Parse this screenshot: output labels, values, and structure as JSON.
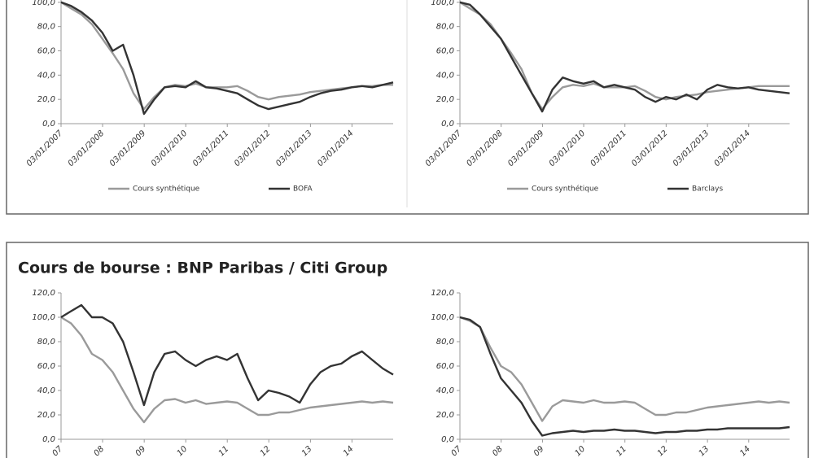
{
  "section_title": "Cours de bourse : BNP Paribas / Citi Group",
  "chart_data": [
    {
      "type": "line",
      "x": [
        "2007-01-03",
        "2007-04-01",
        "2007-07-01",
        "2007-10-01",
        "2008-01-01",
        "2008-04-01",
        "2008-07-01",
        "2008-10-01",
        "2009-01-01",
        "2009-04-01",
        "2009-07-01",
        "2009-10-01",
        "2010-01-01",
        "2010-04-01",
        "2010-07-01",
        "2010-10-01",
        "2011-01-01",
        "2011-04-01",
        "2011-07-01",
        "2011-10-01",
        "2012-01-01",
        "2012-04-01",
        "2012-07-01",
        "2012-10-01",
        "2013-01-01",
        "2013-04-01",
        "2013-07-01",
        "2013-10-01",
        "2014-01-01",
        "2014-04-01",
        "2014-07-01",
        "2014-10-01",
        "2014-12-31"
      ],
      "xlim": [
        "2007-01-03",
        "2014-12-31"
      ],
      "xticks": [
        {
          "value": "2007-01-03",
          "label": "03/01/2007"
        },
        {
          "value": "2008-01-03",
          "label": "03/01/2008"
        },
        {
          "value": "2009-01-03",
          "label": "03/01/2009"
        },
        {
          "value": "2010-01-03",
          "label": "03/01/2010"
        },
        {
          "value": "2011-01-03",
          "label": "03/01/2011"
        },
        {
          "value": "2012-01-03",
          "label": "03/01/2012"
        },
        {
          "value": "2013-01-03",
          "label": "03/01/2013"
        },
        {
          "value": "2014-01-03",
          "label": "03/01/2014"
        }
      ],
      "ylim": [
        0,
        120
      ],
      "yticks": [
        {
          "value": 0,
          "label": "0,0"
        },
        {
          "value": 20,
          "label": "20,0"
        },
        {
          "value": 40,
          "label": "40,0"
        },
        {
          "value": 60,
          "label": "60,0"
        },
        {
          "value": 80,
          "label": "80,0"
        },
        {
          "value": 100,
          "label": "100,0"
        }
      ],
      "series": [
        {
          "name": "Cours synthétique",
          "color": "#9a9a9a",
          "values": [
            100,
            95,
            90,
            82,
            70,
            58,
            45,
            25,
            12,
            22,
            30,
            32,
            31,
            33,
            30,
            30,
            30,
            31,
            27,
            22,
            20,
            22,
            23,
            24,
            26,
            27,
            28,
            29,
            30,
            31,
            31,
            32,
            32
          ]
        },
        {
          "name": "BOFA",
          "color": "#333333",
          "values": [
            100,
            97,
            92,
            85,
            75,
            60,
            65,
            40,
            8,
            20,
            30,
            31,
            30,
            35,
            30,
            29,
            27,
            25,
            20,
            15,
            12,
            14,
            16,
            18,
            22,
            25,
            27,
            28,
            30,
            31,
            30,
            32,
            34
          ]
        }
      ]
    },
    {
      "type": "line",
      "x": [
        "2007-01-03",
        "2007-04-01",
        "2007-07-01",
        "2007-10-01",
        "2008-01-01",
        "2008-04-01",
        "2008-07-01",
        "2008-10-01",
        "2009-01-01",
        "2009-04-01",
        "2009-07-01",
        "2009-10-01",
        "2010-01-01",
        "2010-04-01",
        "2010-07-01",
        "2010-10-01",
        "2011-01-01",
        "2011-04-01",
        "2011-07-01",
        "2011-10-01",
        "2012-01-01",
        "2012-04-01",
        "2012-07-01",
        "2012-10-01",
        "2013-01-01",
        "2013-04-01",
        "2013-07-01",
        "2013-10-01",
        "2014-01-01",
        "2014-04-01",
        "2014-07-01",
        "2014-10-01",
        "2014-12-31"
      ],
      "xlim": [
        "2007-01-03",
        "2014-12-31"
      ],
      "xticks": [
        {
          "value": "2007-01-03",
          "label": "03/01/2007"
        },
        {
          "value": "2008-01-03",
          "label": "03/01/2008"
        },
        {
          "value": "2009-01-03",
          "label": "03/01/2009"
        },
        {
          "value": "2010-01-03",
          "label": "03/01/2010"
        },
        {
          "value": "2011-01-03",
          "label": "03/01/2011"
        },
        {
          "value": "2012-01-03",
          "label": "03/01/2012"
        },
        {
          "value": "2013-01-03",
          "label": "03/01/2013"
        },
        {
          "value": "2014-01-03",
          "label": "03/01/2014"
        }
      ],
      "ylim": [
        0,
        120
      ],
      "yticks": [
        {
          "value": 0,
          "label": "0,0"
        },
        {
          "value": 20,
          "label": "20,0"
        },
        {
          "value": 40,
          "label": "40,0"
        },
        {
          "value": 60,
          "label": "60,0"
        },
        {
          "value": 80,
          "label": "80,0"
        },
        {
          "value": 100,
          "label": "100,0"
        }
      ],
      "series": [
        {
          "name": "Cours synthétique",
          "color": "#9a9a9a",
          "values": [
            100,
            95,
            90,
            82,
            70,
            58,
            45,
            25,
            12,
            22,
            30,
            32,
            31,
            33,
            30,
            30,
            30,
            31,
            27,
            22,
            20,
            22,
            23,
            24,
            26,
            27,
            28,
            29,
            30,
            31,
            31,
            31,
            31
          ]
        },
        {
          "name": "Barclays",
          "color": "#333333",
          "values": [
            100,
            98,
            90,
            80,
            70,
            55,
            40,
            25,
            10,
            28,
            38,
            35,
            33,
            35,
            30,
            32,
            30,
            28,
            22,
            18,
            22,
            20,
            24,
            20,
            28,
            32,
            30,
            29,
            30,
            28,
            27,
            26,
            25
          ]
        }
      ]
    },
    {
      "type": "line",
      "x": [
        "2007-01-03",
        "2007-04-01",
        "2007-07-01",
        "2007-10-01",
        "2008-01-01",
        "2008-04-01",
        "2008-07-01",
        "2008-10-01",
        "2009-01-01",
        "2009-04-01",
        "2009-07-01",
        "2009-10-01",
        "2010-01-01",
        "2010-04-01",
        "2010-07-01",
        "2010-10-01",
        "2011-01-01",
        "2011-04-01",
        "2011-07-01",
        "2011-10-01",
        "2012-01-01",
        "2012-04-01",
        "2012-07-01",
        "2012-10-01",
        "2013-01-01",
        "2013-04-01",
        "2013-07-01",
        "2013-10-01",
        "2014-01-01",
        "2014-04-01",
        "2014-07-01",
        "2014-10-01",
        "2014-12-31"
      ],
      "xlim": [
        "2007-01-03",
        "2014-12-31"
      ],
      "xticks": [
        {
          "value": "2007-01-03",
          "label": "07"
        },
        {
          "value": "2008-01-03",
          "label": "08"
        },
        {
          "value": "2009-01-03",
          "label": "09"
        },
        {
          "value": "2010-01-03",
          "label": "10"
        },
        {
          "value": "2011-01-03",
          "label": "11"
        },
        {
          "value": "2012-01-03",
          "label": "12"
        },
        {
          "value": "2013-01-03",
          "label": "13"
        },
        {
          "value": "2014-01-03",
          "label": "14"
        }
      ],
      "ylim": [
        0,
        120
      ],
      "yticks": [
        {
          "value": 0,
          "label": "0,0"
        },
        {
          "value": 20,
          "label": "20,0"
        },
        {
          "value": 40,
          "label": "40,0"
        },
        {
          "value": 60,
          "label": "60,0"
        },
        {
          "value": 80,
          "label": "80,0"
        },
        {
          "value": 100,
          "label": "100,0"
        },
        {
          "value": 120,
          "label": "120,0"
        }
      ],
      "series": [
        {
          "color": "#9a9a9a",
          "values": [
            100,
            95,
            85,
            70,
            65,
            55,
            40,
            25,
            14,
            25,
            32,
            33,
            30,
            32,
            29,
            30,
            31,
            30,
            25,
            20,
            20,
            22,
            22,
            24,
            26,
            27,
            28,
            29,
            30,
            31,
            30,
            31,
            30
          ]
        },
        {
          "color": "#333333",
          "values": [
            100,
            105,
            110,
            100,
            100,
            95,
            80,
            55,
            28,
            55,
            70,
            72,
            65,
            60,
            65,
            68,
            65,
            70,
            50,
            32,
            40,
            38,
            35,
            30,
            45,
            55,
            60,
            62,
            68,
            72,
            65,
            58,
            53
          ]
        }
      ]
    },
    {
      "type": "line",
      "x": [
        "2007-01-03",
        "2007-04-01",
        "2007-07-01",
        "2007-10-01",
        "2008-01-01",
        "2008-04-01",
        "2008-07-01",
        "2008-10-01",
        "2009-01-01",
        "2009-04-01",
        "2009-07-01",
        "2009-10-01",
        "2010-01-01",
        "2010-04-01",
        "2010-07-01",
        "2010-10-01",
        "2011-01-01",
        "2011-04-01",
        "2011-07-01",
        "2011-10-01",
        "2012-01-01",
        "2012-04-01",
        "2012-07-01",
        "2012-10-01",
        "2013-01-01",
        "2013-04-01",
        "2013-07-01",
        "2013-10-01",
        "2014-01-01",
        "2014-04-01",
        "2014-07-01",
        "2014-10-01",
        "2014-12-31"
      ],
      "xlim": [
        "2007-01-03",
        "2014-12-31"
      ],
      "xticks": [
        {
          "value": "2007-01-03",
          "label": "07"
        },
        {
          "value": "2008-01-03",
          "label": "08"
        },
        {
          "value": "2009-01-03",
          "label": "09"
        },
        {
          "value": "2010-01-03",
          "label": "10"
        },
        {
          "value": "2011-01-03",
          "label": "11"
        },
        {
          "value": "2012-01-03",
          "label": "12"
        },
        {
          "value": "2013-01-03",
          "label": "13"
        },
        {
          "value": "2014-01-03",
          "label": "14"
        }
      ],
      "ylim": [
        0,
        120
      ],
      "yticks": [
        {
          "value": 0,
          "label": "0,0"
        },
        {
          "value": 20,
          "label": "20,0"
        },
        {
          "value": 40,
          "label": "40,0"
        },
        {
          "value": 60,
          "label": "60,0"
        },
        {
          "value": 80,
          "label": "80,0"
        },
        {
          "value": 100,
          "label": "100,0"
        },
        {
          "value": 120,
          "label": "120,0"
        }
      ],
      "series": [
        {
          "color": "#9a9a9a",
          "values": [
            100,
            97,
            92,
            75,
            60,
            55,
            45,
            30,
            15,
            27,
            32,
            31,
            30,
            32,
            30,
            30,
            31,
            30,
            25,
            20,
            20,
            22,
            22,
            24,
            26,
            27,
            28,
            29,
            30,
            31,
            30,
            31,
            30
          ]
        },
        {
          "color": "#333333",
          "values": [
            100,
            98,
            92,
            70,
            50,
            40,
            30,
            15,
            3,
            5,
            6,
            7,
            6,
            7,
            7,
            8,
            7,
            7,
            6,
            5,
            6,
            6,
            7,
            7,
            8,
            8,
            9,
            9,
            9,
            9,
            9,
            9,
            10
          ]
        }
      ]
    }
  ]
}
